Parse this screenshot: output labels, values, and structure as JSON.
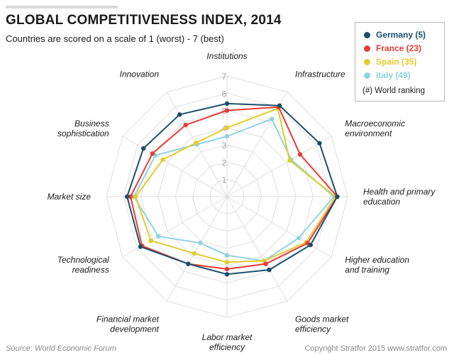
{
  "header": {
    "title": "GLOBAL COMPETITIVENESS INDEX, 2014",
    "subtitle": "Countries are scored on a scale of 1 (worst) - 7 (best)"
  },
  "legend": {
    "note": "(#) World ranking"
  },
  "footer": {
    "source": "Source: World Economic Forum",
    "copyright": "Copyright Stratfor 2015   www.stratfor.com"
  },
  "chart_data": {
    "type": "radar",
    "title": "GLOBAL COMPETITIVENESS INDEX, 2014",
    "subtitle": "Countries are scored on a scale of 1 (worst) - 7 (best)",
    "range": [
      0,
      7
    ],
    "ticks": [
      "1",
      "2",
      "3",
      "4",
      "5",
      "6",
      "7"
    ],
    "grid": true,
    "legend_position": "top-right",
    "categories": [
      "Institutions",
      "Infrastructure",
      "Macroeconomic environment",
      "Health and primary education",
      "Higher education and training",
      "Goods market efficiency",
      "Labor market efficiency",
      "Financial market development",
      "Technological readiness",
      "Market size",
      "Business sophistication",
      "Innovation"
    ],
    "category_lines": [
      [
        "Institutions"
      ],
      [
        "Infrastructure"
      ],
      [
        "Macroeconomic",
        "environment"
      ],
      [
        "Health and primary",
        "education"
      ],
      [
        "Higher education",
        "and training"
      ],
      [
        "Goods market",
        "efficiency"
      ],
      [
        "Labor market",
        "efficiency"
      ],
      [
        "Financial market",
        "development"
      ],
      [
        "Technological",
        "readiness"
      ],
      [
        "Market size"
      ],
      [
        "Business",
        "sophistication"
      ],
      [
        "Innovation"
      ]
    ],
    "series": [
      {
        "name": "Germany (5)",
        "color": "#1b4f6b",
        "values": [
          5.4,
          6.1,
          6.2,
          6.4,
          5.6,
          4.9,
          4.5,
          4.5,
          5.8,
          5.8,
          5.6,
          5.5
        ]
      },
      {
        "name": "France (23)",
        "color": "#e63c33",
        "values": [
          5.0,
          6.0,
          4.9,
          6.4,
          5.4,
          4.5,
          4.2,
          4.5,
          5.7,
          5.6,
          5.0,
          4.8
        ]
      },
      {
        "name": "Spain (35)",
        "color": "#e3cb2a",
        "values": [
          4.0,
          5.9,
          4.2,
          6.3,
          5.3,
          4.3,
          3.8,
          3.8,
          5.1,
          5.3,
          4.3,
          3.6
        ]
      },
      {
        "name": "Italy (49)",
        "color": "#8fd3e0",
        "values": [
          3.5,
          5.2,
          4.3,
          6.2,
          4.8,
          4.3,
          3.4,
          3.1,
          4.6,
          5.4,
          4.8,
          3.5
        ]
      }
    ]
  }
}
